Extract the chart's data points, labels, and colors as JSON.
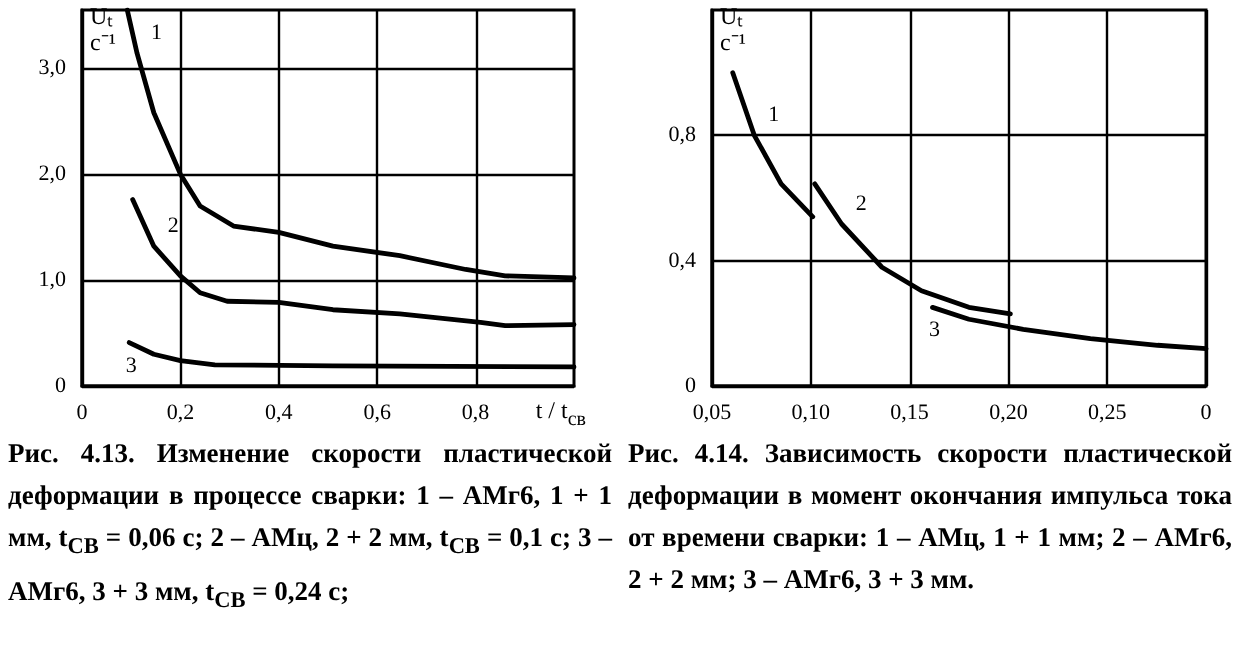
{
  "chart_data": [
    {
      "type": "line",
      "xlabel": "t / t$_{св}$",
      "ylabel": "Uₜ с⁻¹",
      "xlim": [
        0,
        1
      ],
      "ylim": [
        0,
        3.55
      ],
      "xticks": [
        0,
        {
          "value": 0.2,
          "label": "0,2"
        },
        {
          "value": 0.4,
          "label": "0,4"
        },
        {
          "value": 0.6,
          "label": "0,6"
        },
        {
          "value": 0.8,
          "label": "0,8"
        }
      ],
      "yticks": [
        0,
        {
          "value": 1,
          "label": "1,0"
        },
        {
          "value": 2,
          "label": "2,0"
        },
        {
          "value": 3,
          "label": "3,0"
        }
      ],
      "grid": true,
      "legend": false,
      "marker": "none",
      "line_style": "solid",
      "series": [
        {
          "name": "1",
          "color": "#000000",
          "x": [
            0.092,
            0.112,
            0.146,
            0.2,
            0.24,
            0.308,
            0.4,
            0.51,
            0.646,
            0.78,
            0.86,
            1.0
          ],
          "values": [
            3.55,
            3.14,
            2.58,
            2.0,
            1.7,
            1.51,
            1.45,
            1.32,
            1.23,
            1.1,
            1.04,
            1.02
          ]
        },
        {
          "name": "2",
          "color": "#000000",
          "x": [
            0.103,
            0.146,
            0.2,
            0.24,
            0.295,
            0.4,
            0.51,
            0.646,
            0.81,
            0.86,
            1.0
          ],
          "values": [
            1.76,
            1.32,
            1.04,
            0.88,
            0.8,
            0.79,
            0.72,
            0.68,
            0.6,
            0.57,
            0.58
          ]
        },
        {
          "name": "3",
          "color": "#000000",
          "x": [
            0.096,
            0.146,
            0.2,
            0.27,
            0.51,
            1.0
          ],
          "values": [
            0.41,
            0.3,
            0.24,
            0.2,
            0.19,
            0.18
          ]
        }
      ],
      "annotations": [
        "Рис. 4.13. Изменение скорости пластической деформации в процессе сварки: 1 – АМг6, 1 + 1 мм, t$_{СВ}$ = 0,06 с; 2 – АМц, 2 + 2 мм, t$_{СВ}$ = 0,1 с; 3 – АМг6, 3 + 3 мм, t$_{СВ}$ = 0,24 с;"
      ]
    },
    {
      "type": "line",
      "ylabel": "Uₜ с⁻¹",
      "xlim": [
        0.05,
        0.3
      ],
      "ylim": [
        0,
        1.2
      ],
      "xticks": [
        {
          "value": 0.05,
          "label": "0,05"
        },
        {
          "value": 0.1,
          "label": "0,10"
        },
        {
          "value": 0.15,
          "label": "0,15"
        },
        {
          "value": 0.2,
          "label": "0,20"
        },
        {
          "value": 0.25,
          "label": "0,25"
        },
        {
          "value": 0.3,
          "label": "0"
        }
      ],
      "yticks": [
        0,
        {
          "value": 0.4,
          "label": "0,4"
        },
        {
          "value": 0.8,
          "label": "0,8"
        }
      ],
      "grid": true,
      "legend": false,
      "marker": "none",
      "line_style": "solid",
      "series": [
        {
          "name": "1",
          "color": "#000000",
          "x": [
            0.0605,
            0.0714,
            0.085,
            0.101
          ],
          "values": [
            1.0,
            0.8,
            0.645,
            0.54
          ]
        },
        {
          "name": "2",
          "color": "#000000",
          "x": [
            0.102,
            0.1156,
            0.136,
            0.156,
            0.18,
            0.201
          ],
          "values": [
            0.645,
            0.517,
            0.379,
            0.304,
            0.251,
            0.23
          ]
        },
        {
          "name": "3",
          "color": "#000000",
          "x": [
            0.1616,
            0.18,
            0.2075,
            0.2415,
            0.2755,
            0.3
          ],
          "values": [
            0.251,
            0.213,
            0.181,
            0.151,
            0.13,
            0.119
          ]
        }
      ],
      "annotations": [
        "Рис. 4.14. Зависимость скорости пластической деформации в момент окончания импульса тока от времени сварки: 1 – АМц, 1 + 1 мм; 2 – АМг6, 2 + 2 мм; 3 – АМг6, 3 + 3 мм."
      ]
    }
  ]
}
